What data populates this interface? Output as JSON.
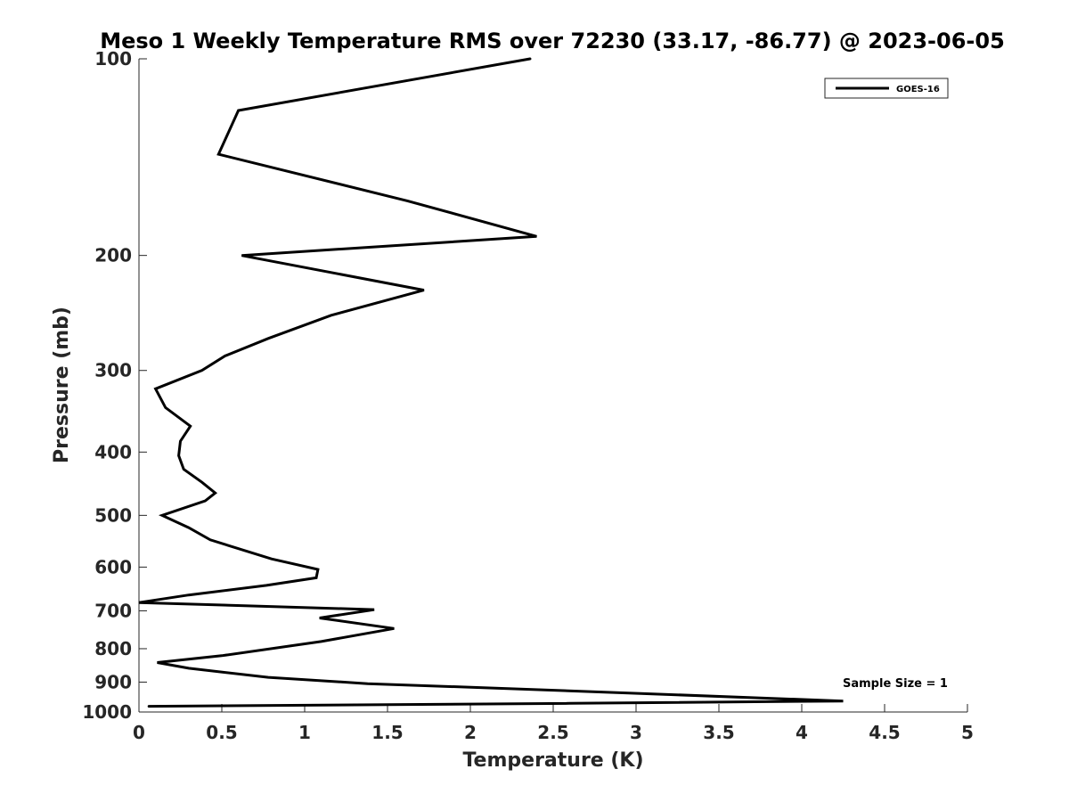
{
  "chart_data": {
    "type": "line",
    "title": "Meso 1 Weekly Temperature RMS over 72230 (33.17, -86.77) @ 2023-06-05",
    "xlabel": "Temperature (K)",
    "ylabel": "Pressure (mb)",
    "xlim": [
      0,
      5
    ],
    "ylim": [
      100,
      1000
    ],
    "yscale": "log",
    "yreversed": true,
    "x_ticks": [
      "0",
      "0.5",
      "1",
      "1.5",
      "2",
      "2.5",
      "3",
      "3.5",
      "4",
      "4.5",
      "5"
    ],
    "y_ticks": [
      "100",
      "200",
      "300",
      "400",
      "500",
      "600",
      "700",
      "800",
      "900",
      "1000"
    ],
    "grid": false,
    "legend": {
      "entries": [
        "GOES-16"
      ],
      "placement": "top-right"
    },
    "annotation": "Sample Size = 1",
    "series": [
      {
        "name": "GOES-16",
        "color": "#000000",
        "points": [
          [
            2.36,
            100
          ],
          [
            0.6,
            120
          ],
          [
            0.48,
            140
          ],
          [
            1.62,
            165
          ],
          [
            2.4,
            187
          ],
          [
            0.62,
            200
          ],
          [
            1.72,
            226
          ],
          [
            1.16,
            247
          ],
          [
            0.78,
            268
          ],
          [
            0.52,
            285
          ],
          [
            0.38,
            300
          ],
          [
            0.1,
            320
          ],
          [
            0.16,
            342
          ],
          [
            0.31,
            365
          ],
          [
            0.25,
            385
          ],
          [
            0.24,
            405
          ],
          [
            0.27,
            425
          ],
          [
            0.38,
            445
          ],
          [
            0.46,
            462
          ],
          [
            0.4,
            475
          ],
          [
            0.14,
            500
          ],
          [
            0.3,
            522
          ],
          [
            0.43,
            545
          ],
          [
            0.8,
            583
          ],
          [
            1.08,
            605
          ],
          [
            1.07,
            623
          ],
          [
            0.77,
            640
          ],
          [
            0.3,
            662
          ],
          [
            0.0,
            680
          ],
          [
            1.42,
            697
          ],
          [
            1.09,
            718
          ],
          [
            1.54,
            745
          ],
          [
            1.1,
            780
          ],
          [
            0.5,
            820
          ],
          [
            0.11,
            840
          ],
          [
            0.3,
            857
          ],
          [
            0.78,
            885
          ],
          [
            1.38,
            905
          ],
          [
            2.45,
            925
          ],
          [
            4.25,
            962
          ],
          [
            2.6,
            970
          ],
          [
            0.06,
            980
          ]
        ]
      }
    ]
  }
}
